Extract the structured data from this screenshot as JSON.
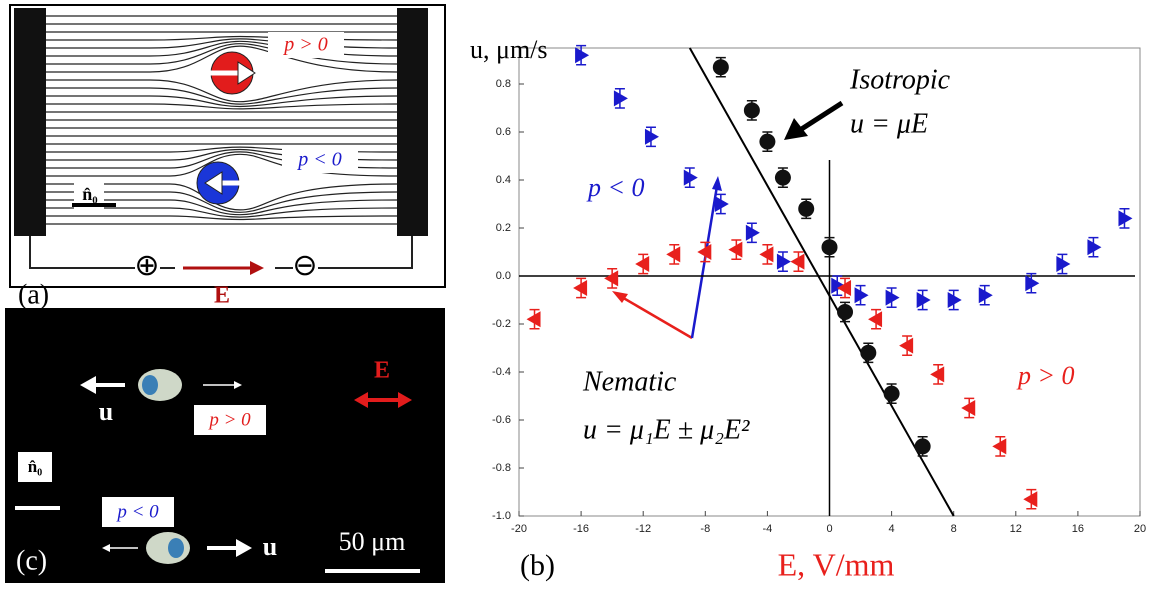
{
  "chart_data": {
    "type": "scatter",
    "title": "(b)",
    "y_label": "u,  μm/s",
    "x_label": "E, V/mm",
    "xlim": [
      -20,
      20
    ],
    "ylim": [
      -1.0,
      0.95
    ],
    "xticks": [
      -20,
      -16,
      -12,
      -8,
      -4,
      0,
      4,
      8,
      12,
      16,
      20
    ],
    "yticks": [
      {
        "value": -1.0,
        "label": "-1.0"
      },
      -0.8,
      -0.6,
      -0.4,
      -0.2,
      {
        "value": 0,
        "label": "0.0"
      },
      0.2,
      0.4,
      0.6,
      0.8
    ],
    "series": [
      {
        "marker": "circle",
        "color": "#111111",
        "x": [
          -7,
          -5,
          -4,
          -3,
          -1.5,
          0,
          1,
          2.5,
          4,
          6
        ],
        "values": [
          0.87,
          0.69,
          0.56,
          0.41,
          0.28,
          0.12,
          -0.15,
          -0.32,
          -0.49,
          -0.71
        ],
        "errors": [
          0.04,
          0.04,
          0.04,
          0.04,
          0.04,
          0.04,
          0.04,
          0.04,
          0.04,
          0.04
        ]
      },
      {
        "marker": "triangle-right",
        "color": "#1a1acc",
        "x": [
          -16,
          -13.5,
          -11.5,
          -9,
          -7,
          -5,
          -3,
          0.5,
          2,
          4,
          6,
          8,
          10,
          13,
          15,
          17,
          19
        ],
        "values": [
          0.92,
          0.74,
          0.58,
          0.41,
          0.3,
          0.18,
          0.06,
          -0.04,
          -0.08,
          -0.09,
          -0.1,
          -0.1,
          -0.08,
          -0.03,
          0.05,
          0.12,
          0.24
        ],
        "errors": [
          0.04,
          0.04,
          0.04,
          0.04,
          0.04,
          0.04,
          0.04,
          0.04,
          0.04,
          0.04,
          0.04,
          0.04,
          0.04,
          0.04,
          0.04,
          0.04,
          0.04
        ]
      },
      {
        "marker": "triangle-left",
        "color": "#e8201c",
        "x": [
          -19,
          -16,
          -14,
          -12,
          -10,
          -8,
          -6,
          -4,
          -2,
          1,
          3,
          5,
          7,
          9,
          11,
          13
        ],
        "values": [
          -0.18,
          -0.05,
          -0.01,
          0.05,
          0.09,
          0.1,
          0.11,
          0.09,
          0.06,
          -0.05,
          -0.18,
          -0.29,
          -0.41,
          -0.55,
          -0.71,
          -0.93
        ],
        "errors": [
          0.04,
          0.04,
          0.04,
          0.04,
          0.04,
          0.04,
          0.04,
          0.04,
          0.04,
          0.04,
          0.04,
          0.04,
          0.04,
          0.04,
          0.04,
          0.04
        ]
      }
    ],
    "fit_line": {
      "x": [
        -9,
        8
      ],
      "values": [
        0.95,
        -1.0
      ]
    },
    "annotations": {
      "isotropic": "Isotropic",
      "isotropic_law": "u = μE",
      "nematic": "Nematic",
      "nematic_law": "u = μ₁E ± μ₂E²",
      "p_neg": "p < 0",
      "p_pos": "p > 0"
    }
  },
  "panel_a": {
    "label": "(a)",
    "p_pos": "p > 0",
    "p_neg": "p < 0",
    "director": "n̂₀",
    "field": "E",
    "plus": "⊕",
    "minus": "⊖"
  },
  "panel_c": {
    "label": "(c)",
    "field": "E",
    "velocity_top": "u",
    "velocity_bottom": "u",
    "p_pos": "p > 0",
    "p_neg": "p < 0",
    "director": "n̂₀",
    "scale": "50 μm"
  }
}
